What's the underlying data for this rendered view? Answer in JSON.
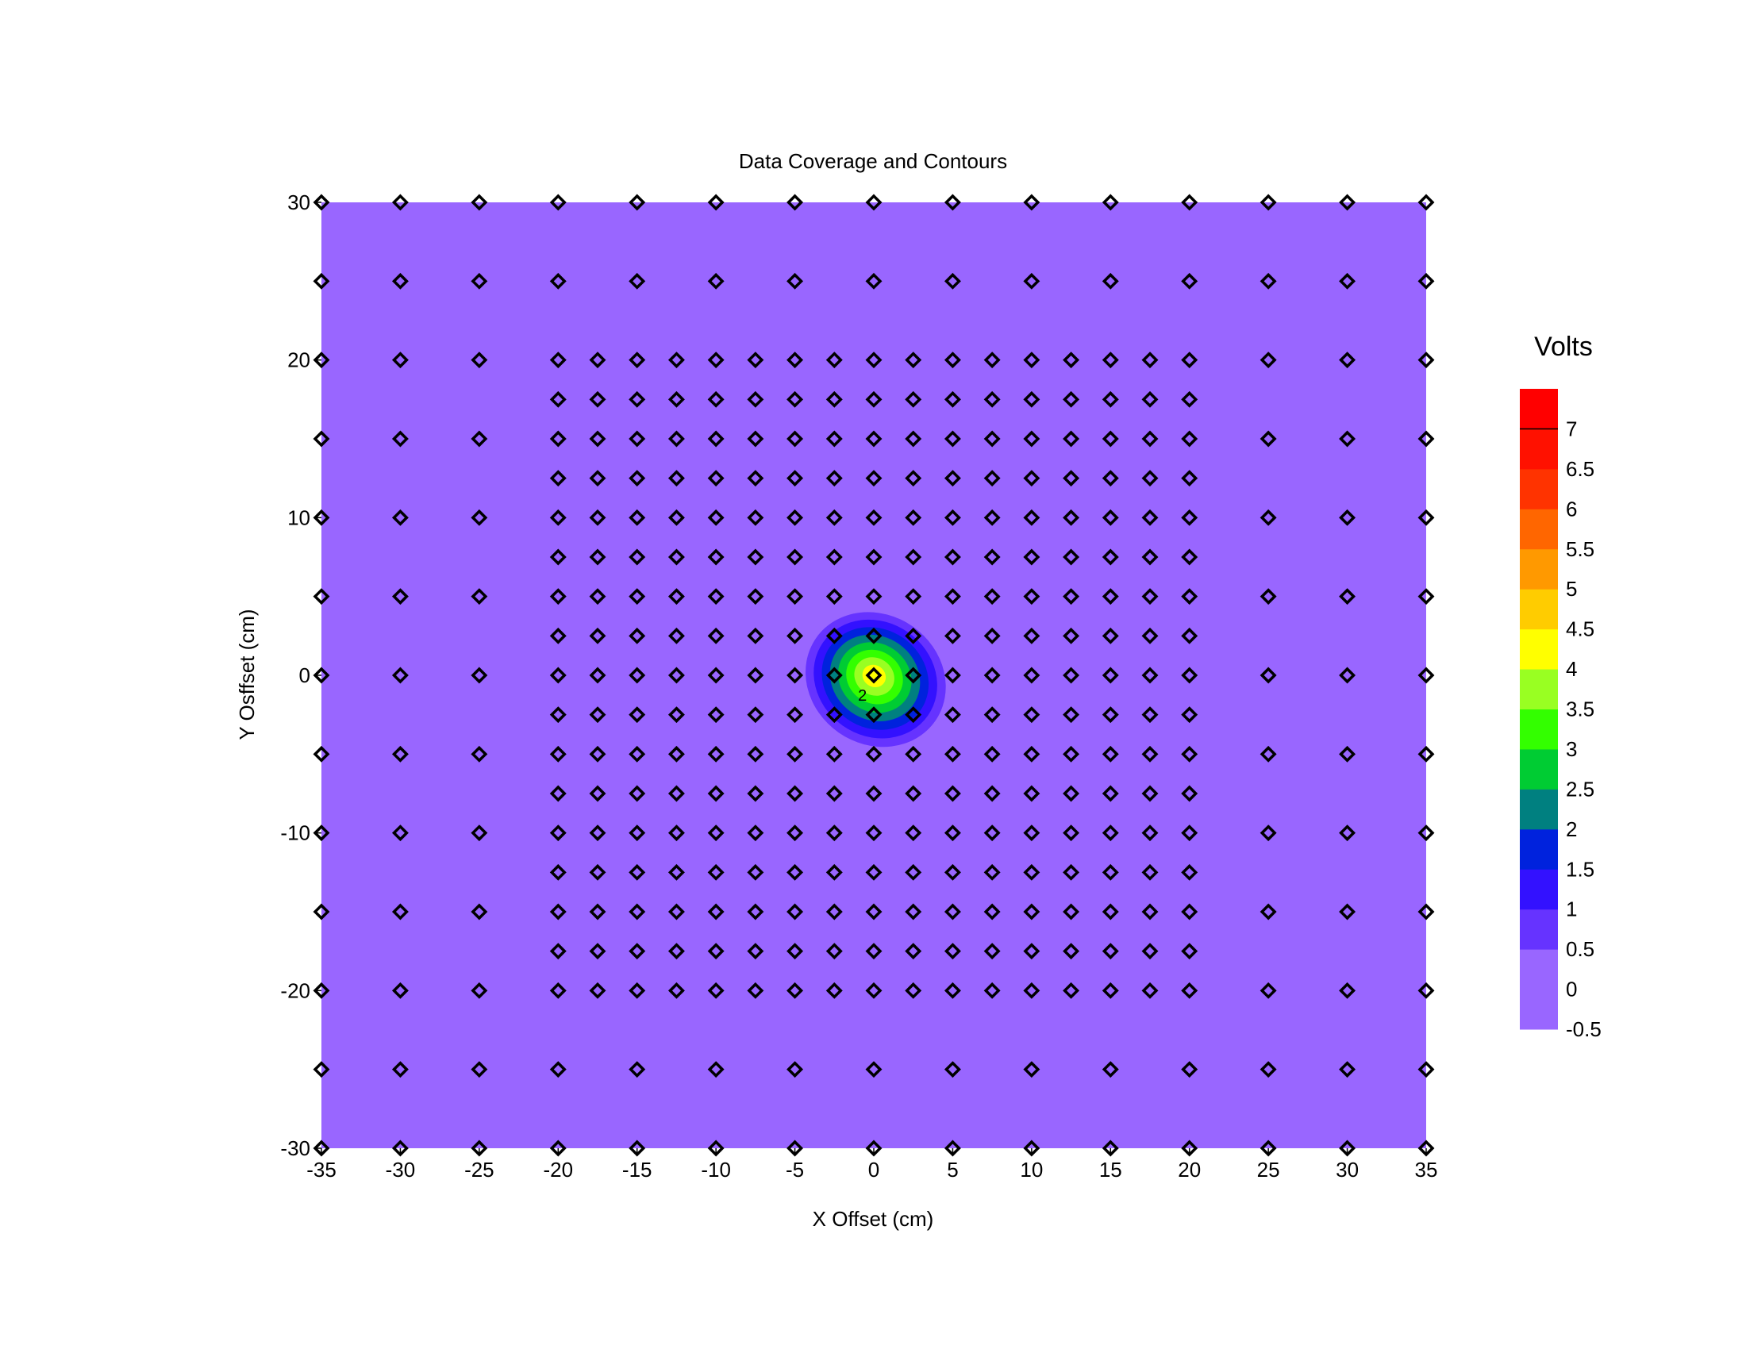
{
  "chart_data": {
    "type": "contour",
    "title": "Data Coverage and Contours",
    "xlabel": "X Offset (cm)",
    "ylabel": "Y Osffset (cm)",
    "xlim": [
      -35,
      35
    ],
    "ylim": [
      -30,
      30
    ],
    "x_ticks": [
      "-35",
      "-30",
      "-25",
      "-20",
      "-15",
      "-10",
      "-5",
      "0",
      "5",
      "10",
      "15",
      "20",
      "25",
      "30",
      "35"
    ],
    "y_ticks": [
      "30",
      "20",
      "10",
      "0",
      "-10",
      "-20",
      "-30"
    ],
    "colorbar": {
      "title": "Volts",
      "tick_labels": [
        "7",
        "6.5",
        "6",
        "5.5",
        "5",
        "4.5",
        "4",
        "3.5",
        "3",
        "2.5",
        "2",
        "1.5",
        "1",
        "0.5",
        "0",
        "-0.5"
      ],
      "levels": [
        -0.5,
        0,
        0.5,
        1,
        1.5,
        2,
        2.5,
        3,
        3.5,
        4,
        4.5,
        5,
        5.5,
        6,
        6.5,
        7,
        7.5
      ],
      "colors": [
        "#9966ff",
        "#9966ff",
        "#6633ff",
        "#3311ff",
        "#0022dd",
        "#008080",
        "#00cc33",
        "#33ff00",
        "#99ff22",
        "#ffff00",
        "#ffcc00",
        "#ff9900",
        "#ff6600",
        "#ff3300",
        "#ff1100",
        "#ff0000"
      ]
    },
    "background_value": -0.3,
    "contour_labels": [
      "2"
    ],
    "peak": {
      "x": 0,
      "y": 0,
      "value": 4.4
    },
    "outer_grid": {
      "x": [
        -35,
        -30,
        -25,
        -20,
        -15,
        -10,
        -5,
        0,
        5,
        10,
        15,
        20,
        25,
        30,
        35
      ],
      "y": [
        -30,
        -25,
        -20,
        -15,
        -10,
        -5,
        0,
        5,
        10,
        15,
        20,
        25,
        30
      ]
    },
    "inner_grid": {
      "x": [
        -20,
        -17.5,
        -15,
        -12.5,
        -10,
        -7.5,
        -5,
        -2.5,
        0,
        2.5,
        5,
        7.5,
        10,
        12.5,
        15,
        17.5,
        20
      ],
      "y": [
        -20,
        -17.5,
        -15,
        -12.5,
        -10,
        -7.5,
        -5,
        -2.5,
        0,
        2.5,
        5,
        7.5,
        10,
        12.5,
        15,
        17.5,
        20
      ]
    }
  }
}
